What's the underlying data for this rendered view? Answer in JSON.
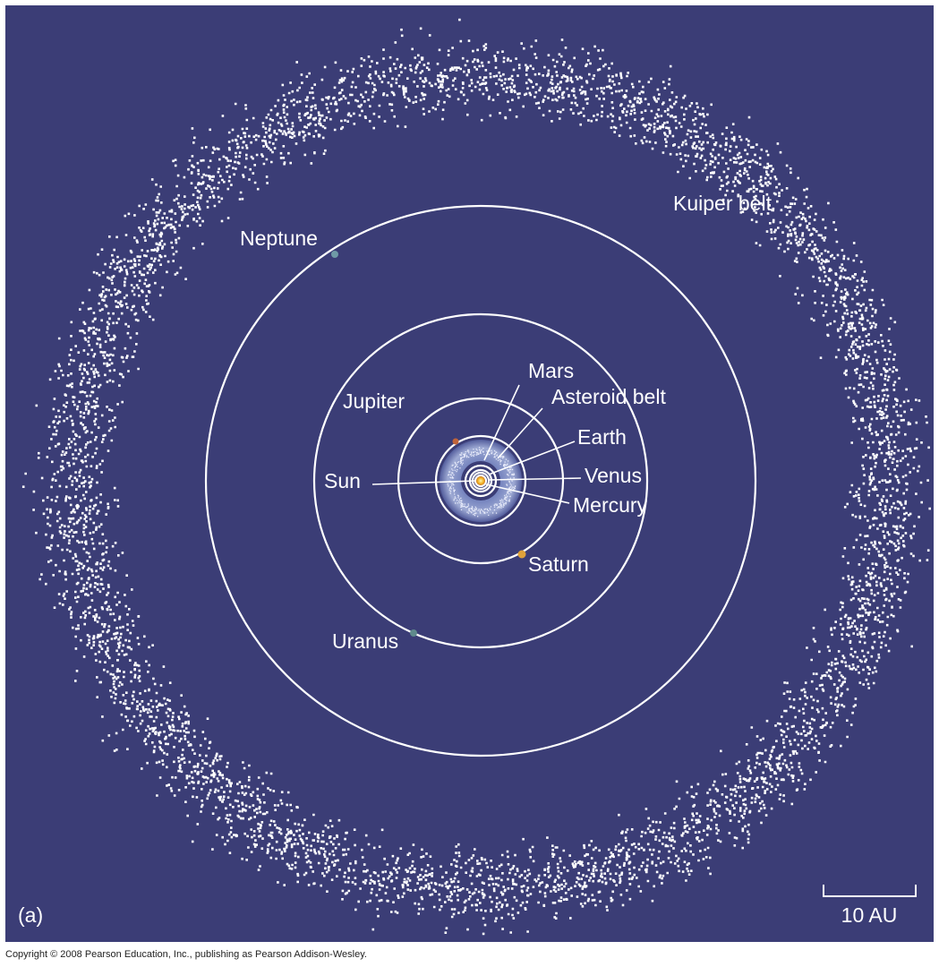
{
  "labels": {
    "kuiper_belt": "Kuiper belt",
    "neptune": "Neptune",
    "mars": "Mars",
    "asteroid_belt": "Asteroid belt",
    "jupiter": "Jupiter",
    "earth": "Earth",
    "venus": "Venus",
    "sun": "Sun",
    "mercury": "Mercury",
    "saturn": "Saturn",
    "uranus": "Uranus"
  },
  "panel_label": "(a)",
  "scale_bar": "10 AU",
  "copyright": "Copyright © 2008 Pearson Education, Inc., publishing as Pearson Addison-Wesley."
}
